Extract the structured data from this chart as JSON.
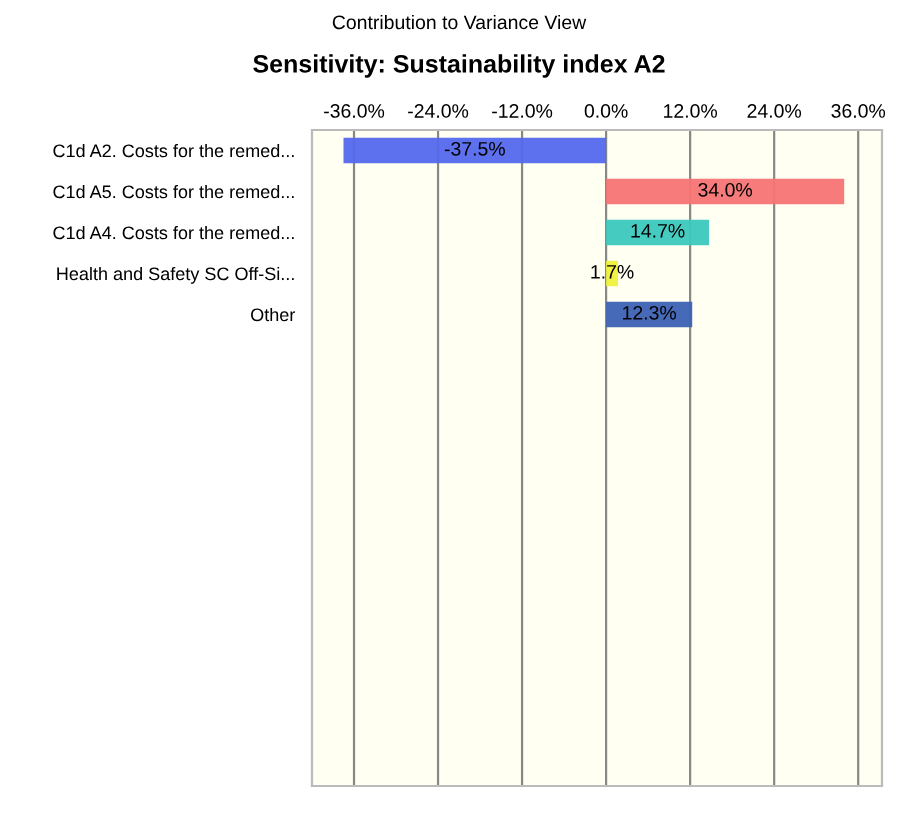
{
  "chart_data": {
    "type": "bar",
    "orientation": "horizontal",
    "title": "Contribution to Variance View",
    "subtitle": "Sensitivity: Sustainability index A2",
    "categories": [
      "C1d A2. Costs for the remed...",
      "C1d A5. Costs for the remed...",
      "C1d A4. Costs for the remed...",
      "Health and Safety SC Off-Si...",
      "Other"
    ],
    "values": [
      -37.5,
      34.0,
      14.7,
      1.7,
      12.3
    ],
    "colors": [
      "#5468ec",
      "#f87474",
      "#3cc8be",
      "#f0f03c",
      "#3c62b4"
    ],
    "value_labels": [
      "-37.5%",
      "34.0%",
      "14.7%",
      "1.7%",
      "12.3%"
    ],
    "xlim": [
      -42,
      39.4
    ],
    "xticks": [
      {
        "value": -36,
        "label": "-36.0%"
      },
      {
        "value": -24,
        "label": "-24.0%"
      },
      {
        "value": -12,
        "label": "-12.0%"
      },
      {
        "value": 0,
        "label": "0.0%"
      },
      {
        "value": 12,
        "label": "12.0%"
      },
      {
        "value": 24,
        "label": "24.0%"
      },
      {
        "value": 36,
        "label": "36.0%"
      }
    ],
    "grid": "x"
  }
}
